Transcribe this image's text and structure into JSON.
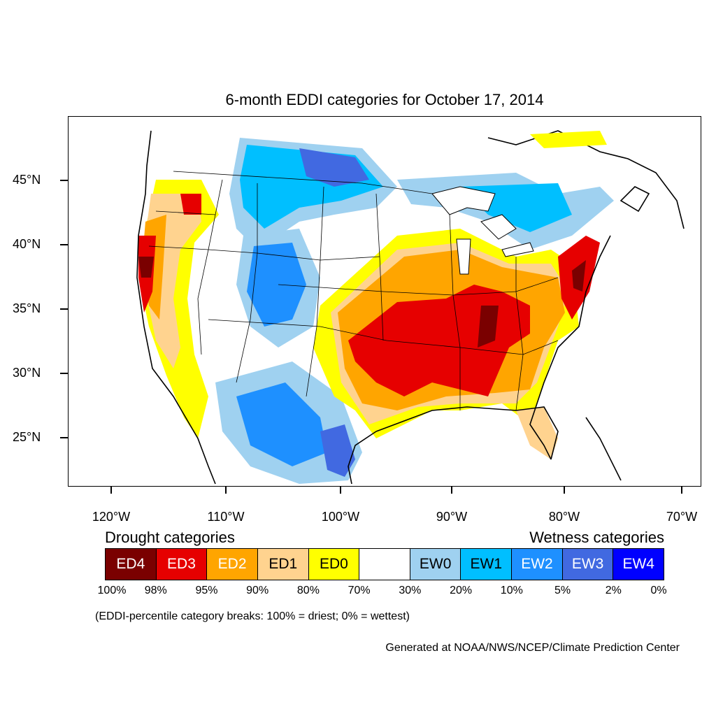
{
  "title": "6-month EDDI categories for October 17, 2014",
  "axes": {
    "y_ticks": [
      "45°N",
      "40°N",
      "35°N",
      "30°N",
      "25°N"
    ],
    "x_ticks": [
      "120°W",
      "110°W",
      "100°W",
      "90°W",
      "80°W",
      "70°W"
    ]
  },
  "legend": {
    "drought_heading": "Drought categories",
    "wetness_heading": "Wetness categories",
    "categories": [
      {
        "label": "ED4",
        "color": "#7a0000",
        "text_color": "#ffffff"
      },
      {
        "label": "ED3",
        "color": "#e60000",
        "text_color": "#ffffff"
      },
      {
        "label": "ED2",
        "color": "#ffa500",
        "text_color": "#ffffff"
      },
      {
        "label": "ED1",
        "color": "#ffd38f",
        "text_color": "#000000"
      },
      {
        "label": "ED0",
        "color": "#ffff00",
        "text_color": "#000000"
      },
      {
        "label": "",
        "color": "#ffffff",
        "text_color": "#000000"
      },
      {
        "label": "EW0",
        "color": "#9fd1f0",
        "text_color": "#000000"
      },
      {
        "label": "EW1",
        "color": "#00bfff",
        "text_color": "#000000"
      },
      {
        "label": "EW2",
        "color": "#1e90ff",
        "text_color": "#ffffff"
      },
      {
        "label": "EW3",
        "color": "#4169e1",
        "text_color": "#ffffff"
      },
      {
        "label": "EW4",
        "color": "#0000ff",
        "text_color": "#ffffff"
      }
    ],
    "breaks": [
      "100%",
      "98%",
      "95%",
      "90%",
      "80%",
      "70%",
      "30%",
      "20%",
      "10%",
      "5%",
      "2%",
      "0%"
    ]
  },
  "note": "(EDDI-percentile category breaks: 100% = driest; 0% = wettest)",
  "credit": "Generated at NOAA/NWS/NCEP/Climate Prediction Center"
}
